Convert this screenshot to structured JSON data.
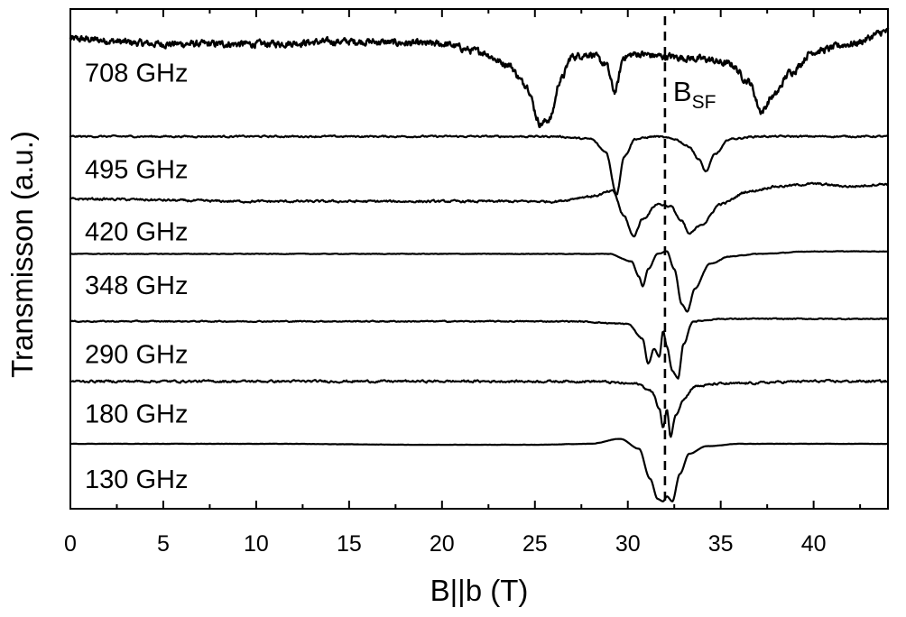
{
  "chart_data": {
    "type": "line",
    "title": "",
    "xlabel": "B||b (T)",
    "ylabel": "Transmisson (a.u.)",
    "xlim": [
      0,
      44
    ],
    "xticks": [
      "0",
      "5",
      "10",
      "15",
      "20",
      "25",
      "30",
      "35",
      "40"
    ],
    "ylim": [
      0,
      1
    ],
    "yticks": "none",
    "grid": false,
    "legend": "none",
    "reference_line": {
      "x": 32,
      "style": "dashed",
      "label_main": "B",
      "label_sub": "SF"
    },
    "series": [
      {
        "name": "708 GHz",
        "offset": 0.938,
        "noise": 0.012,
        "x": [
          0,
          5,
          10,
          15,
          20,
          22,
          23.5,
          24.5,
          25.3,
          25.8,
          26.4,
          27.0,
          28.0,
          28.8,
          29.3,
          29.8,
          30.5,
          32,
          34,
          35.5,
          36.5,
          37.2,
          37.8,
          38.8,
          40,
          42,
          44
        ],
        "y": [
          0.94,
          0.93,
          0.93,
          0.935,
          0.93,
          0.915,
          0.89,
          0.85,
          0.77,
          0.78,
          0.86,
          0.905,
          0.91,
          0.89,
          0.835,
          0.905,
          0.91,
          0.905,
          0.9,
          0.89,
          0.855,
          0.795,
          0.825,
          0.875,
          0.915,
          0.93,
          0.955
        ]
      },
      {
        "name": "495 GHz",
        "offset": 0.745,
        "noise": 0.003,
        "x": [
          0,
          10,
          20,
          26,
          28,
          28.8,
          29.4,
          29.8,
          30.4,
          31.5,
          32.5,
          33.3,
          33.8,
          34.2,
          34.7,
          35.5,
          37,
          40,
          44
        ],
        "y": [
          0.745,
          0.745,
          0.745,
          0.745,
          0.74,
          0.715,
          0.63,
          0.705,
          0.74,
          0.745,
          0.74,
          0.725,
          0.7,
          0.675,
          0.71,
          0.74,
          0.745,
          0.745,
          0.745
        ]
      },
      {
        "name": "420 GHz",
        "offset": 0.62,
        "noise": 0.004,
        "x": [
          0,
          10,
          20,
          26,
          28,
          29.2,
          29.8,
          30.3,
          30.8,
          31.6,
          32.3,
          32.9,
          33.3,
          34.0,
          35.0,
          36.5,
          38,
          40,
          42,
          44
        ],
        "y": [
          0.62,
          0.615,
          0.615,
          0.615,
          0.625,
          0.635,
          0.585,
          0.545,
          0.58,
          0.61,
          0.605,
          0.575,
          0.55,
          0.57,
          0.61,
          0.635,
          0.645,
          0.65,
          0.645,
          0.65
        ]
      },
      {
        "name": "348 GHz",
        "offset": 0.513,
        "noise": 0.001,
        "x": [
          0,
          10,
          20,
          27,
          29,
          30.2,
          30.6,
          30.8,
          31.1,
          31.6,
          32.1,
          32.5,
          32.9,
          33.2,
          33.6,
          34.4,
          35.5,
          37,
          40,
          44
        ],
        "y": [
          0.51,
          0.51,
          0.51,
          0.51,
          0.51,
          0.495,
          0.465,
          0.445,
          0.48,
          0.51,
          0.515,
          0.48,
          0.41,
          0.395,
          0.44,
          0.49,
          0.505,
          0.51,
          0.515,
          0.515
        ]
      },
      {
        "name": "290 GHz",
        "offset": 0.375,
        "noise": 0.002,
        "x": [
          0,
          10,
          20,
          27,
          30.0,
          30.8,
          31.1,
          31.4,
          31.7,
          31.9,
          32.1,
          32.4,
          32.7,
          33.0,
          33.5,
          35,
          40,
          44
        ],
        "y": [
          0.375,
          0.375,
          0.375,
          0.375,
          0.37,
          0.34,
          0.29,
          0.32,
          0.305,
          0.355,
          0.325,
          0.275,
          0.26,
          0.33,
          0.375,
          0.38,
          0.38,
          0.38
        ]
      },
      {
        "name": "180 GHz",
        "offset": 0.255,
        "noise": 0.004,
        "x": [
          0,
          10,
          20,
          28,
          30.5,
          31.3,
          31.7,
          31.9,
          32.1,
          32.3,
          32.6,
          33.0,
          33.6,
          35,
          40,
          44
        ],
        "y": [
          0.255,
          0.255,
          0.255,
          0.255,
          0.25,
          0.235,
          0.2,
          0.16,
          0.2,
          0.145,
          0.19,
          0.22,
          0.245,
          0.25,
          0.255,
          0.255
        ]
      },
      {
        "name": "130 GHz",
        "offset": 0.125,
        "noise": 0.0005,
        "x": [
          0,
          10,
          20,
          25,
          28,
          29.6,
          30.6,
          31.2,
          31.6,
          31.9,
          32.1,
          32.4,
          32.8,
          33.3,
          34.2,
          36,
          40,
          44
        ],
        "y": [
          0.13,
          0.13,
          0.128,
          0.128,
          0.13,
          0.14,
          0.12,
          0.06,
          0.02,
          0.015,
          0.025,
          0.015,
          0.07,
          0.11,
          0.125,
          0.13,
          0.13,
          0.13
        ]
      }
    ]
  }
}
